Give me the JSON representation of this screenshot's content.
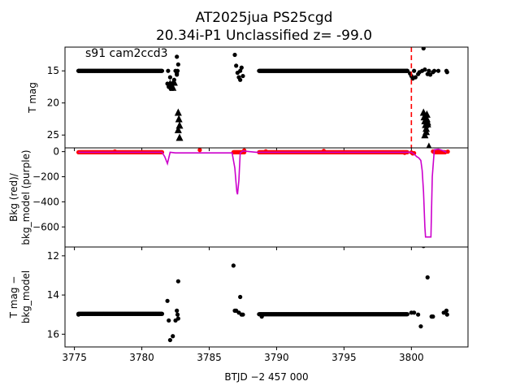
{
  "title_line1": "AT2025jua  PS25cgd",
  "title_line2": "20.34i-P1 Unclassified z= -99.0",
  "colors": {
    "points": "#000000",
    "bkg": "#ff0000",
    "model": "#cc00cc",
    "marker": "#ff0000"
  },
  "chart_data": [
    {
      "type": "scatter",
      "panel": "top",
      "annotation": "s91 cam2ccd3",
      "ylabel": "T mag",
      "y_inverted": true,
      "ylim": [
        27.0,
        11.3
      ],
      "yticks": [
        15,
        20,
        25
      ],
      "xlim": [
        3774.3,
        3804.2
      ],
      "vline_x": 3800.0,
      "series": [
        {
          "kind": "dense_band",
          "x_range": [
            3775.3,
            3781.5
          ],
          "y": 15.0
        },
        {
          "kind": "dense_band",
          "x_range": [
            3788.7,
            3799.7
          ],
          "y": 15.0
        },
        {
          "kind": "points",
          "x": [
            3781.9,
            3782.0,
            3782.1,
            3782.2,
            3782.3,
            3782.4,
            3782.5,
            3781.95,
            3782.15,
            3782.35,
            3782.6,
            3782.65,
            3782.7,
            3782.6,
            3782.6,
            3786.9,
            3787.0,
            3787.1,
            3787.2,
            3787.3,
            3787.4,
            3787.5,
            3787.3,
            3799.7,
            3799.9,
            3800.0,
            3800.1,
            3800.2,
            3800.3,
            3800.5,
            3800.6,
            3800.8,
            3800.9,
            3801.0,
            3801.2,
            3801.3,
            3801.4,
            3801.6,
            3801.7,
            3802.6,
            3802.65,
            3775.3,
            3802.0
          ],
          "y": [
            17.0,
            17.5,
            16.0,
            17.2,
            17.8,
            16.4,
            15.0,
            15.0,
            17.8,
            16.8,
            12.8,
            15.0,
            14.0,
            15.4,
            15.6,
            12.5,
            14.2,
            15.3,
            16.0,
            15.0,
            14.5,
            15.8,
            16.4,
            15.0,
            15.4,
            15.8,
            16.2,
            15.0,
            16.0,
            15.5,
            15.2,
            15.0,
            11.5,
            14.8,
            15.5,
            15.0,
            15.6,
            15.2,
            15.0,
            15.0,
            15.2,
            15.0,
            15.0
          ]
        },
        {
          "kind": "upper_limits",
          "x": [
            3782.1,
            3782.2,
            3782.3,
            3782.4,
            3782.7,
            3782.75,
            3782.8,
            3782.7,
            3782.8,
            3800.9,
            3800.95,
            3801.0,
            3801.05,
            3801.1,
            3801.15,
            3801.2,
            3801.0,
            3801.1,
            3801.15,
            3801.2,
            3801.3,
            3801.3
          ],
          "y": [
            17.0,
            17.3,
            17.6,
            16.8,
            21.5,
            22.5,
            23.5,
            24.2,
            25.4,
            21.5,
            22.2,
            22.8,
            23.4,
            24.0,
            21.8,
            23.0,
            25.0,
            24.5,
            22.5,
            23.3,
            26.8,
            27.0
          ]
        }
      ]
    },
    {
      "type": "line",
      "panel": "middle",
      "ylabel": "Bkg (red)/\nbkg_model (purple)",
      "ylim": [
        -760,
        30
      ],
      "yticks": [
        0,
        -200,
        -400,
        -600
      ],
      "xlim": [
        3774.3,
        3804.2
      ],
      "series": [
        {
          "kind": "bkg_points",
          "segments": [
            [
              3775.3,
              3781.5
            ],
            [
              3786.8,
              3787.6
            ],
            [
              3788.7,
              3799.7
            ],
            [
              3801.7,
              3802.5
            ]
          ],
          "y": -5,
          "extra_x": [
            3778.0,
            3784.3,
            3787.6,
            3789.2,
            3793.5,
            3800.0,
            3799.5,
            3800.1,
            3800.2,
            3801.6,
            3802.0,
            3802.7
          ],
          "extra_y": [
            2,
            13,
            10,
            3,
            6,
            -6,
            -10,
            -15,
            -12,
            2,
            4,
            0
          ]
        },
        {
          "kind": "model_line",
          "x": [
            3775.3,
            3781.2,
            3781.5,
            3781.7,
            3781.9,
            3782.1,
            3782.5,
            3786.4,
            3786.7,
            3786.9,
            3787.0,
            3787.05,
            3787.1,
            3787.2,
            3787.3,
            3787.5,
            3788.5,
            3798.5,
            3799.5,
            3800.0,
            3800.2,
            3800.4,
            3800.55,
            3800.7,
            3800.8,
            3800.9,
            3801.0,
            3801.05,
            3801.1,
            3801.3,
            3801.45,
            3801.55,
            3801.7,
            3802.0,
            3802.3,
            3802.6
          ],
          "y": [
            -5,
            -5,
            -5,
            -40,
            -95,
            -5,
            -10,
            -10,
            -10,
            -130,
            -260,
            -320,
            -340,
            -230,
            -10,
            5,
            -5,
            -5,
            -5,
            -5,
            -20,
            -40,
            -50,
            -70,
            -150,
            -320,
            -600,
            -680,
            -680,
            -680,
            -680,
            -200,
            15,
            20,
            10,
            -5
          ]
        }
      ]
    },
    {
      "type": "scatter",
      "panel": "bottom",
      "ylabel": "T mag −\nbkg_model",
      "y_inverted": true,
      "ylim": [
        16.65,
        11.55
      ],
      "yticks": [
        12,
        14,
        16
      ],
      "xlim": [
        3774.3,
        3804.2
      ],
      "xticks": [
        3775,
        3780,
        3785,
        3790,
        3795,
        3800
      ],
      "xlabel": "BTJD −2 457 000",
      "series": [
        {
          "kind": "dense_band",
          "x_range": [
            3775.3,
            3781.5
          ],
          "y": 14.96
        },
        {
          "kind": "dense_band",
          "x_range": [
            3788.7,
            3799.7
          ],
          "y": 14.98
        },
        {
          "kind": "points",
          "x": [
            3781.9,
            3782.0,
            3782.1,
            3782.3,
            3782.5,
            3782.7,
            3782.6,
            3782.65,
            3782.7,
            3786.8,
            3786.9,
            3787.0,
            3787.2,
            3787.4,
            3787.5,
            3787.3,
            3800.0,
            3800.2,
            3800.5,
            3800.7,
            3800.9,
            3801.2,
            3801.5,
            3801.6,
            3802.4,
            3802.6,
            3802.65,
            3775.3,
            3788.9
          ],
          "y": [
            14.3,
            15.3,
            16.3,
            16.1,
            15.3,
            13.3,
            14.8,
            15.0,
            15.2,
            12.5,
            14.8,
            14.8,
            14.9,
            15.0,
            15.0,
            14.1,
            14.9,
            14.9,
            15.0,
            15.6,
            11.5,
            13.1,
            15.1,
            15.1,
            14.9,
            14.8,
            15.0,
            15.0,
            15.1
          ]
        }
      ]
    }
  ]
}
